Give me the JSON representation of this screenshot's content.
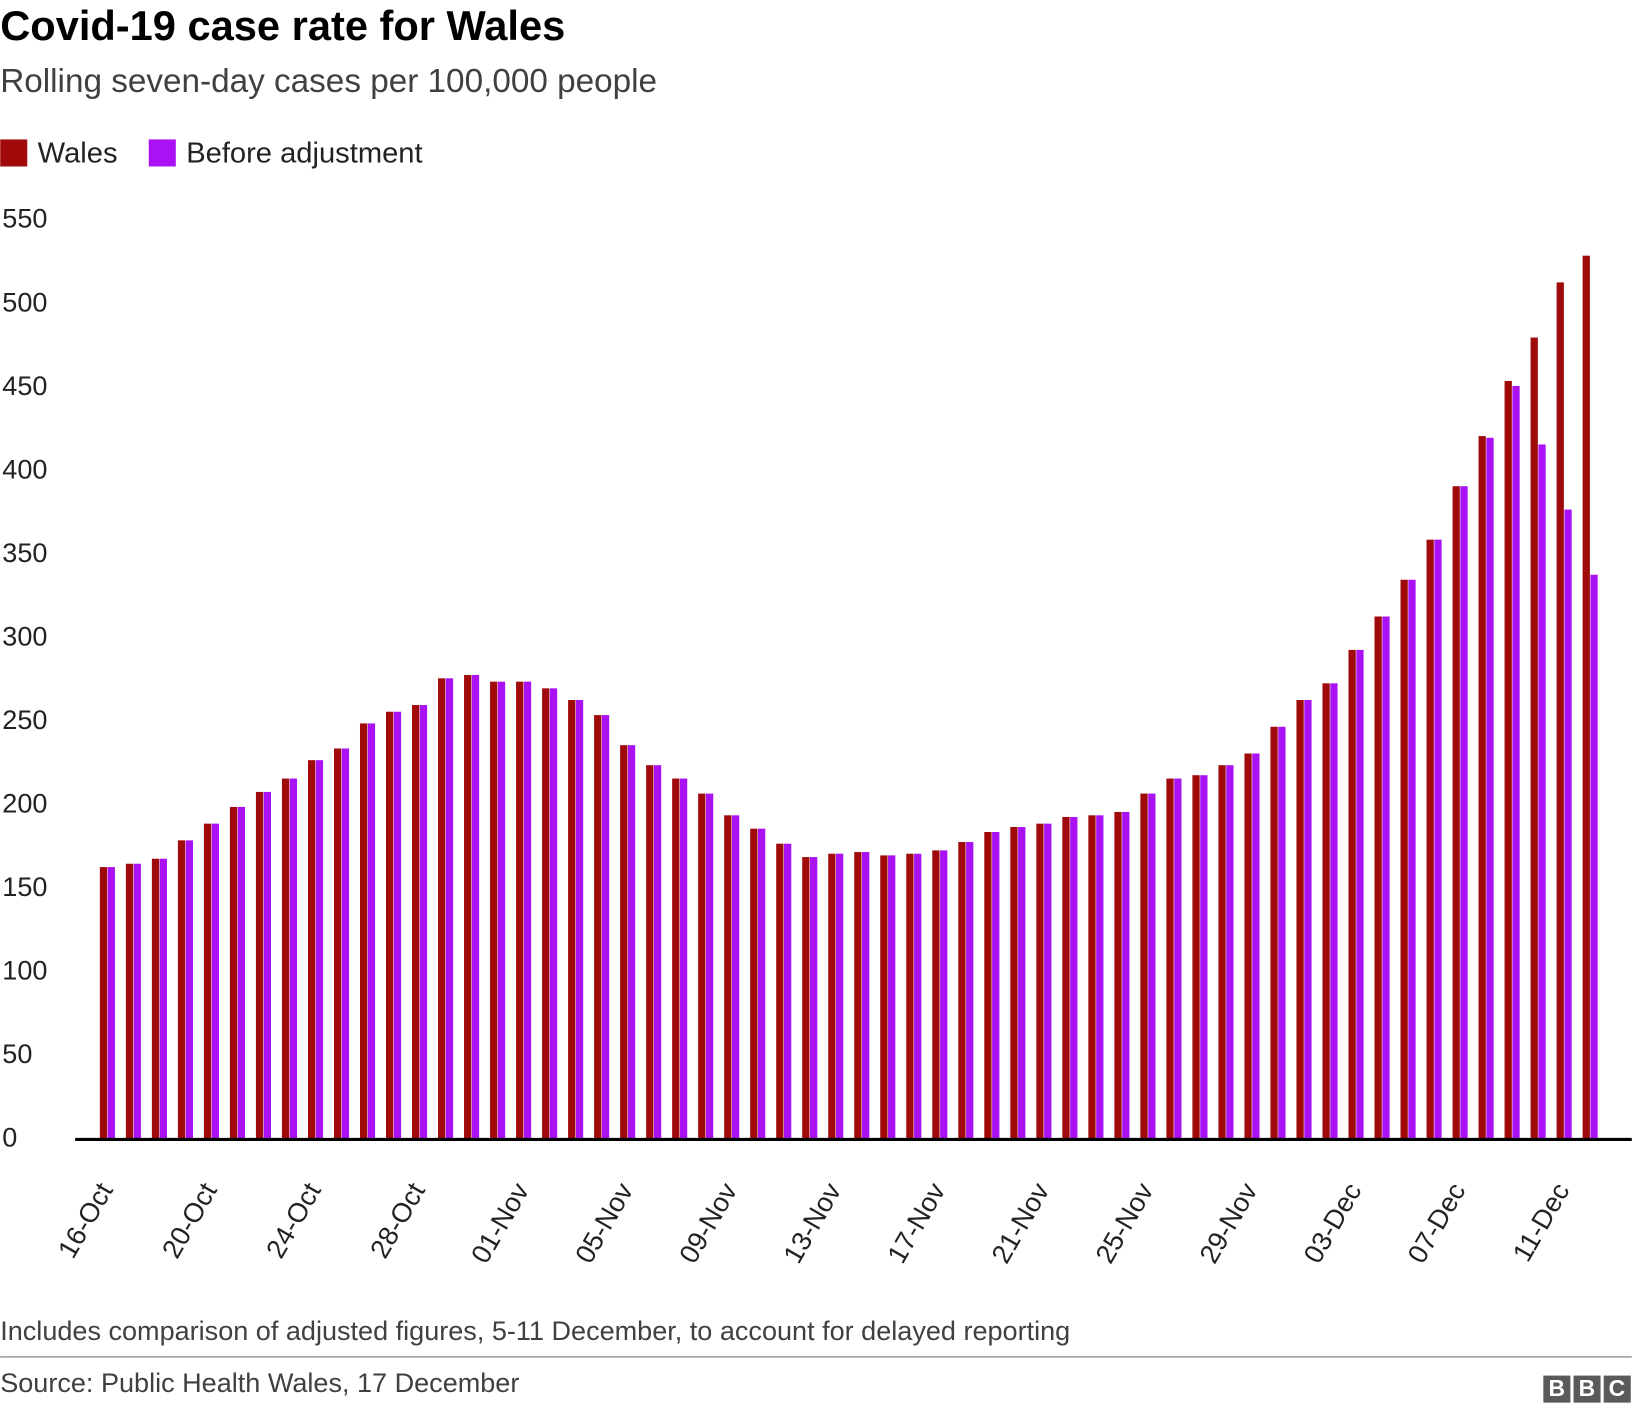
{
  "chart_data": {
    "type": "bar",
    "title": "Covid-19 case rate for Wales",
    "subtitle": "Rolling seven-day cases per 100,000 people",
    "note": "Includes comparison of adjusted figures, 5-11 December, to account for delayed reporting",
    "source": "Source: Public Health Wales, 17 December",
    "logo": "BBC",
    "categories": [
      "16-Oct",
      null,
      null,
      null,
      "20-Oct",
      null,
      null,
      null,
      "24-Oct",
      null,
      null,
      null,
      "28-Oct",
      null,
      null,
      null,
      "01-Nov",
      null,
      null,
      null,
      "05-Nov",
      null,
      null,
      null,
      "09-Nov",
      null,
      null,
      null,
      "13-Nov",
      null,
      null,
      null,
      "17-Nov",
      null,
      null,
      null,
      "21-Nov",
      null,
      null,
      null,
      "25-Nov",
      null,
      null,
      null,
      "29-Nov",
      null,
      null,
      null,
      "03-Dec",
      null,
      null,
      null,
      "07-Dec",
      null,
      null,
      null,
      "11-Dec",
      null
    ],
    "series": [
      {
        "name": "Wales",
        "color": "#a00a0a",
        "values": [
          163,
          165,
          168,
          179,
          189,
          199,
          208,
          216,
          227,
          234,
          249,
          256,
          260,
          276,
          278,
          274,
          274,
          270,
          263,
          254,
          236,
          224,
          216,
          207,
          194,
          186,
          177,
          169,
          171,
          172,
          170,
          171,
          173,
          178,
          184,
          187,
          189,
          193,
          194,
          196,
          207,
          216,
          218,
          224,
          231,
          247,
          263,
          273,
          293,
          313,
          335,
          359,
          391,
          421,
          454,
          480,
          513,
          529
        ]
      },
      {
        "name": "Before adjustment",
        "color": "#aa11f5",
        "values": [
          163,
          165,
          168,
          179,
          189,
          199,
          208,
          216,
          227,
          234,
          249,
          256,
          260,
          276,
          278,
          274,
          274,
          270,
          263,
          254,
          236,
          224,
          216,
          207,
          194,
          186,
          177,
          169,
          171,
          172,
          170,
          171,
          173,
          178,
          184,
          187,
          189,
          193,
          194,
          196,
          207,
          216,
          218,
          224,
          231,
          247,
          263,
          273,
          293,
          313,
          335,
          359,
          391,
          420,
          451,
          416,
          377,
          338
        ]
      }
    ],
    "ylim": [
      0,
      550
    ],
    "yticks": [
      0,
      50,
      100,
      150,
      200,
      250,
      300,
      350,
      400,
      450,
      500,
      550
    ],
    "grid": false,
    "legend": "top-left"
  }
}
